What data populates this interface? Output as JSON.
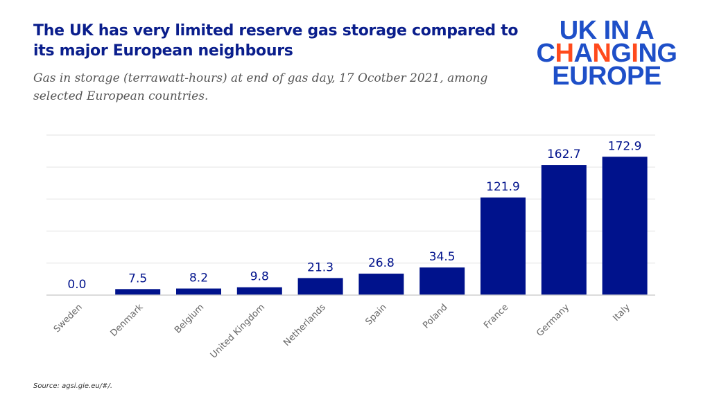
{
  "header": {
    "title": "The UK has very limited reserve gas storage compared to its major European neighbours",
    "subtitle": "Gas in storage (terrawatt-hours) at end of gas day, 17 Ocotber 2021, among selected European countries."
  },
  "logo": {
    "text": "UK IN A CHANGING EUROPE",
    "line1": "UK IN A",
    "line2": "CHANGING",
    "line3": "EUROPE",
    "accent_color": "#ff4a1c",
    "color": "#1e4fc8"
  },
  "source": "Source: agsi.gie.eu/#/.",
  "chart_data": {
    "type": "bar",
    "title": "",
    "xlabel": "",
    "ylabel": "",
    "categories": [
      "Sweden",
      "Denmark",
      "Belgium",
      "United Kingdom",
      "Netherlands",
      "Spain",
      "Poland",
      "France",
      "Germany",
      "Italy"
    ],
    "values": [
      0.0,
      7.5,
      8.2,
      9.8,
      21.3,
      26.8,
      34.5,
      121.9,
      162.7,
      172.9
    ],
    "data_labels": [
      "0.0",
      "7.5",
      "8.2",
      "9.8",
      "21.3",
      "26.8",
      "34.5",
      "121.9",
      "162.7",
      "172.9"
    ],
    "ylim": [
      0,
      200
    ],
    "gridlines": [
      0,
      40,
      80,
      120,
      160,
      200
    ],
    "grid": true,
    "bar_color": "#00128c"
  }
}
